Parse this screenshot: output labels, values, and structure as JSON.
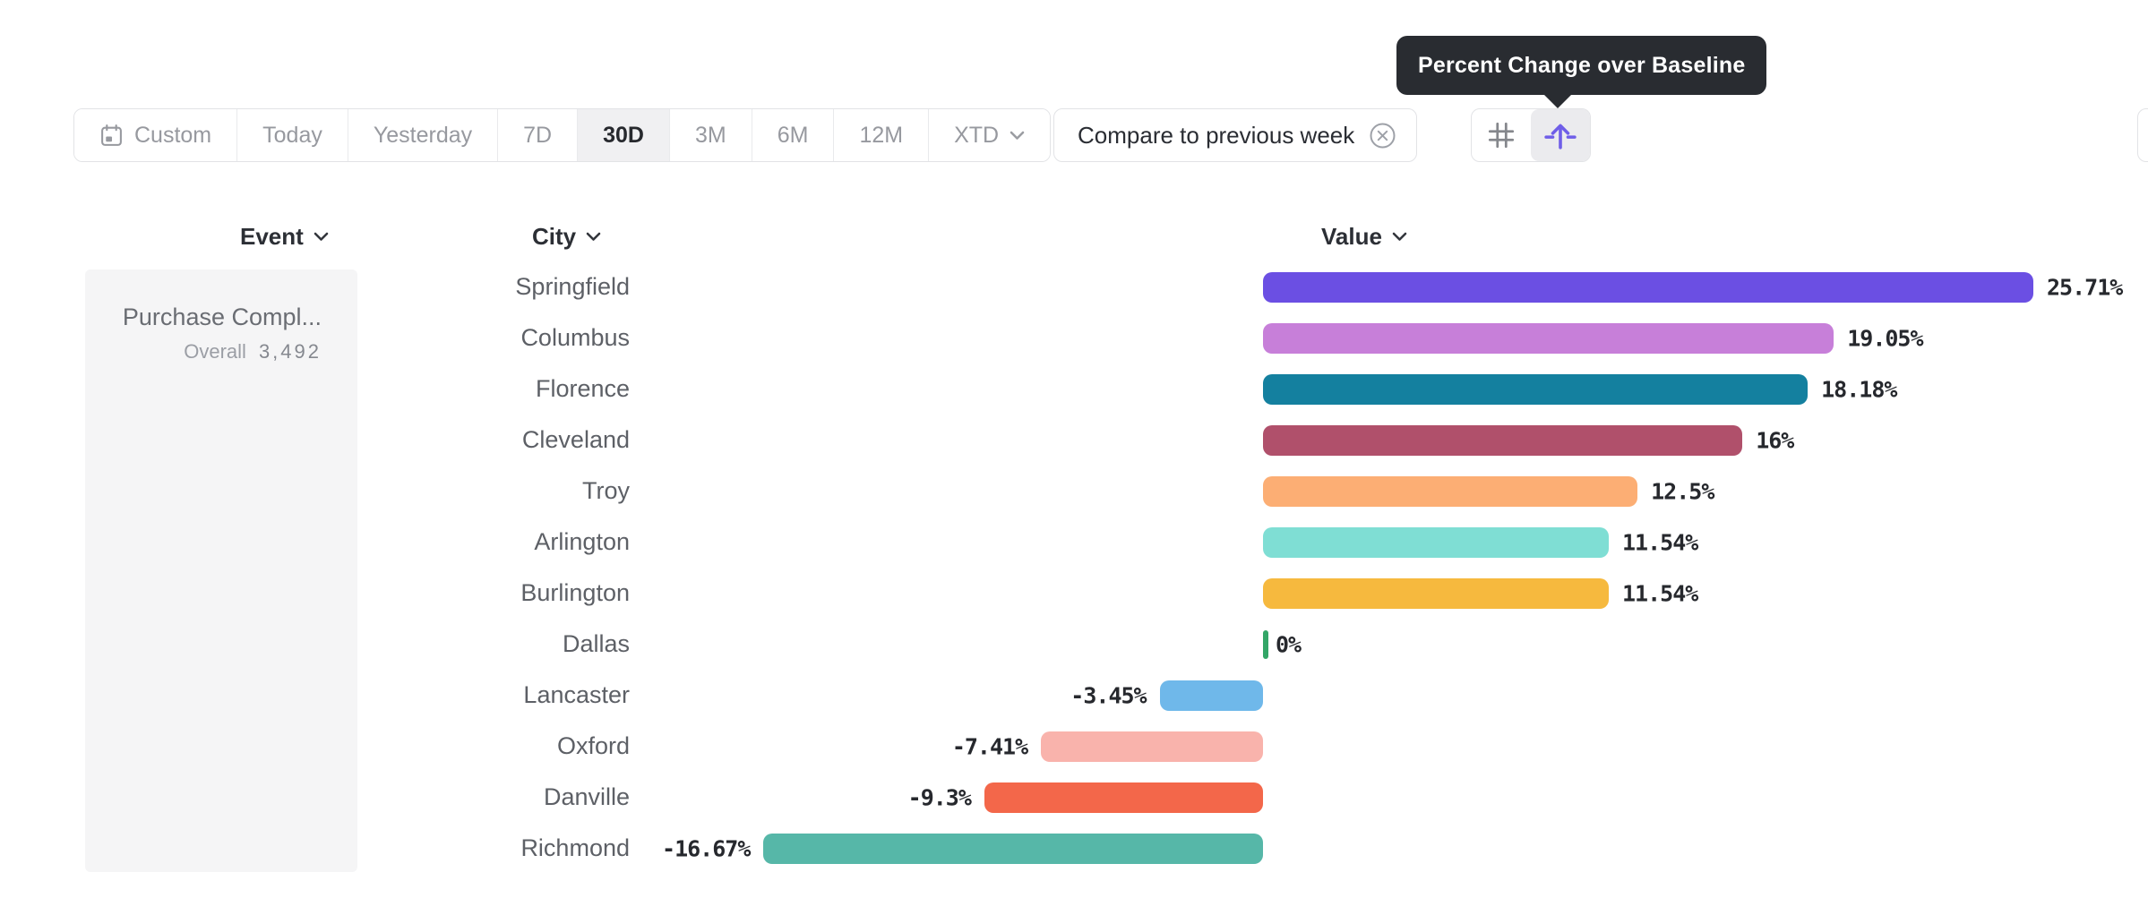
{
  "tooltip": {
    "text": "Percent Change over Baseline",
    "bg_color": "#292c31"
  },
  "toolbar": {
    "date_ranges": [
      {
        "label": "Custom",
        "icon": "calendar-icon",
        "selected": false
      },
      {
        "label": "Today",
        "selected": false
      },
      {
        "label": "Yesterday",
        "selected": false
      },
      {
        "label": "7D",
        "selected": false
      },
      {
        "label": "30D",
        "selected": true
      },
      {
        "label": "3M",
        "selected": false
      },
      {
        "label": "6M",
        "selected": false
      },
      {
        "label": "12M",
        "selected": false
      },
      {
        "label": "XTD",
        "chevron": true,
        "selected": false
      }
    ],
    "compare_label": "Compare to previous week",
    "view_toggles": [
      {
        "name": "grid-view",
        "icon": "hash-grid-icon",
        "selected": false
      },
      {
        "name": "percent-change-over-baseline-view",
        "icon": "arrow-over-baseline-icon",
        "selected": true,
        "accent": "#6f5ee8"
      }
    ]
  },
  "columns": {
    "event": "Event",
    "city": "City",
    "value": "Value"
  },
  "event_panel": {
    "event_name": "Purchase Compl...",
    "overall_label": "Overall",
    "overall_value": "3,492"
  },
  "chart_data": {
    "type": "bar",
    "orientation": "horizontal",
    "title": "Percent Change over Baseline",
    "unit": "%",
    "baseline": 0,
    "xlim": [
      -16.67,
      25.71
    ],
    "categories": [
      "Springfield",
      "Columbus",
      "Florence",
      "Cleveland",
      "Troy",
      "Arlington",
      "Burlington",
      "Dallas",
      "Lancaster",
      "Oxford",
      "Danville",
      "Richmond"
    ],
    "values": [
      25.71,
      19.05,
      18.18,
      16,
      12.5,
      11.54,
      11.54,
      0,
      -3.45,
      -7.41,
      -9.3,
      -16.67
    ],
    "labels": [
      "25.71%",
      "19.05%",
      "18.18%",
      "16%",
      "12.5%",
      "11.54%",
      "11.54%",
      "0%",
      "-3.45%",
      "-7.41%",
      "-9.3%",
      "-16.67%"
    ],
    "colors": [
      "#6b4fe3",
      "#c77fd9",
      "#14809f",
      "#b0506b",
      "#fcae74",
      "#7fded4",
      "#f6b93e",
      "#33a667",
      "#6fb8ea",
      "#f9b3ac",
      "#f3674a",
      "#56b7a8"
    ],
    "zero_tick_color": "#33a667"
  }
}
